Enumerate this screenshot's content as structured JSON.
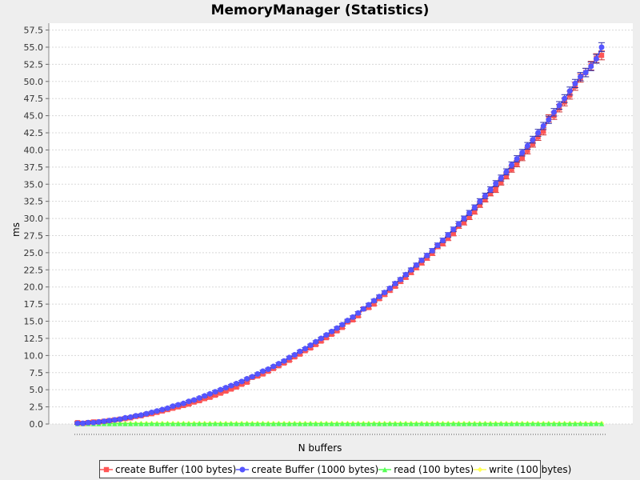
{
  "chart_data": {
    "type": "line",
    "title": "MemoryManager (Statistics)",
    "xlabel": "N buffers",
    "ylabel": "ms",
    "ylim": [
      0,
      58.5
    ],
    "yticks": [
      "0.0",
      "2.5",
      "5.0",
      "7.5",
      "10.0",
      "12.5",
      "15.0",
      "17.5",
      "20.0",
      "22.5",
      "25.0",
      "27.5",
      "30.0",
      "32.5",
      "35.0",
      "37.5",
      "40.0",
      "42.5",
      "45.0",
      "47.5",
      "50.0",
      "52.5",
      "55.0",
      "57.5"
    ],
    "grid": true,
    "legend_position": "bottom",
    "x_count": 100,
    "series": [
      {
        "name": "create Buffer (100 bytes)",
        "color": "#ff5555",
        "marker": "square",
        "values": [
          0.2,
          0.1,
          0.2,
          0.3,
          0.3,
          0.4,
          0.5,
          0.6,
          0.7,
          0.8,
          0.9,
          1.1,
          1.2,
          1.4,
          1.5,
          1.7,
          1.9,
          2.1,
          2.3,
          2.5,
          2.7,
          2.9,
          3.2,
          3.4,
          3.7,
          3.9,
          4.2,
          4.5,
          4.8,
          5.1,
          5.4,
          5.8,
          6.1,
          6.8,
          7.0,
          7.3,
          7.7,
          8.1,
          8.5,
          8.9,
          9.3,
          9.8,
          10.2,
          10.7,
          11.1,
          11.6,
          12.1,
          12.6,
          13.1,
          13.6,
          14.1,
          14.9,
          15.2,
          15.8,
          16.8,
          17.0,
          17.5,
          18.3,
          18.9,
          19.5,
          20.1,
          20.8,
          21.4,
          22.1,
          22.8,
          23.5,
          24.2,
          24.9,
          25.9,
          26.3,
          27.1,
          27.8,
          28.9,
          29.4,
          30.2,
          31.0,
          32.0,
          32.8,
          33.7,
          34.2,
          35.3,
          36.2,
          37.2,
          38.0,
          38.9,
          39.9,
          40.9,
          41.9,
          42.7,
          44.6,
          45.0,
          46.1,
          47.0,
          48.0,
          49.3,
          50.5,
          51.3,
          52.3,
          53.4,
          53.8
        ]
      },
      {
        "name": "create Buffer (1000 bytes)",
        "color": "#5555ff",
        "marker": "circle",
        "values": [
          0.1,
          0.1,
          0.2,
          0.2,
          0.3,
          0.4,
          0.5,
          0.6,
          0.7,
          0.9,
          1.0,
          1.2,
          1.3,
          1.5,
          1.7,
          1.9,
          2.1,
          2.3,
          2.6,
          2.8,
          3.0,
          3.3,
          3.5,
          3.8,
          4.1,
          4.4,
          4.7,
          5.0,
          5.3,
          5.6,
          5.9,
          6.2,
          6.6,
          6.9,
          7.3,
          7.7,
          8.0,
          8.4,
          8.8,
          9.2,
          9.7,
          10.1,
          10.6,
          11.0,
          11.5,
          12.0,
          12.5,
          13.0,
          13.5,
          14.0,
          14.5,
          15.1,
          15.6,
          16.2,
          16.8,
          17.4,
          18.0,
          18.6,
          19.2,
          19.8,
          20.5,
          21.1,
          21.8,
          22.5,
          23.2,
          23.9,
          24.6,
          25.3,
          26.1,
          26.8,
          27.6,
          28.4,
          29.2,
          30.0,
          30.8,
          31.6,
          32.5,
          33.3,
          34.2,
          35.1,
          35.9,
          36.8,
          37.8,
          38.7,
          39.6,
          40.6,
          41.5,
          42.5,
          43.5,
          44.4,
          45.5,
          46.5,
          47.5,
          48.6,
          49.7,
          50.7,
          51.3,
          52.2,
          53.3,
          55.0
        ]
      },
      {
        "name": "read (100 bytes)",
        "color": "#55ff55",
        "marker": "triangle",
        "values": [
          0.05,
          0.05,
          0.06,
          0.05,
          0.05,
          0.06,
          0.05,
          0.05,
          0.06,
          0.05,
          0.05,
          0.06,
          0.05,
          0.05,
          0.06,
          0.05,
          0.05,
          0.06,
          0.05,
          0.05,
          0.06,
          0.05,
          0.05,
          0.06,
          0.05,
          0.05,
          0.06,
          0.05,
          0.05,
          0.06,
          0.05,
          0.05,
          0.06,
          0.05,
          0.05,
          0.06,
          0.05,
          0.05,
          0.06,
          0.05,
          0.05,
          0.06,
          0.05,
          0.05,
          0.06,
          0.05,
          0.05,
          0.06,
          0.05,
          0.05,
          0.06,
          0.05,
          0.05,
          0.06,
          0.05,
          0.05,
          0.06,
          0.05,
          0.05,
          0.06,
          0.05,
          0.05,
          0.06,
          0.05,
          0.05,
          0.06,
          0.05,
          0.05,
          0.06,
          0.05,
          0.05,
          0.06,
          0.05,
          0.05,
          0.06,
          0.05,
          0.05,
          0.06,
          0.05,
          0.05,
          0.06,
          0.05,
          0.05,
          0.06,
          0.05,
          0.05,
          0.06,
          0.05,
          0.05,
          0.06,
          0.05,
          0.05,
          0.06,
          0.05,
          0.05,
          0.06,
          0.05,
          0.05,
          0.06,
          0.05
        ]
      },
      {
        "name": "write (100 bytes)",
        "color": "#ffff55",
        "marker": "diamond",
        "values": [
          0.1,
          0.1,
          0.1,
          0.1,
          0.1,
          0.1,
          0.1,
          0.1,
          0.1,
          0.1,
          0.1,
          0.1,
          0.1,
          0.1,
          0.1,
          0.1,
          0.1,
          0.1,
          0.1,
          0.1,
          0.1,
          0.1,
          0.1,
          0.1,
          0.1,
          0.1,
          0.1,
          0.1,
          0.1,
          0.1,
          0.1,
          0.1,
          0.1,
          0.1,
          0.1,
          0.1,
          0.1,
          0.1,
          0.1,
          0.1,
          0.1,
          0.1,
          0.1,
          0.1,
          0.1,
          0.1,
          0.1,
          0.1,
          0.1,
          0.1,
          0.1,
          0.1,
          0.1,
          0.1,
          0.1,
          0.1,
          0.1,
          0.1,
          0.1,
          0.1,
          0.1,
          0.1,
          0.1,
          0.1,
          0.1,
          0.1,
          0.1,
          0.1,
          0.1,
          0.1,
          0.1,
          0.1,
          0.1,
          0.1,
          0.1,
          0.1,
          0.1,
          0.1,
          0.1,
          0.1,
          0.1,
          0.1,
          0.1,
          0.1,
          0.1,
          0.1,
          0.1,
          0.1,
          0.1,
          0.1,
          0.1,
          0.1,
          0.1,
          0.1,
          0.1,
          0.1,
          0.1,
          0.1,
          0.1,
          0.1
        ]
      }
    ]
  }
}
